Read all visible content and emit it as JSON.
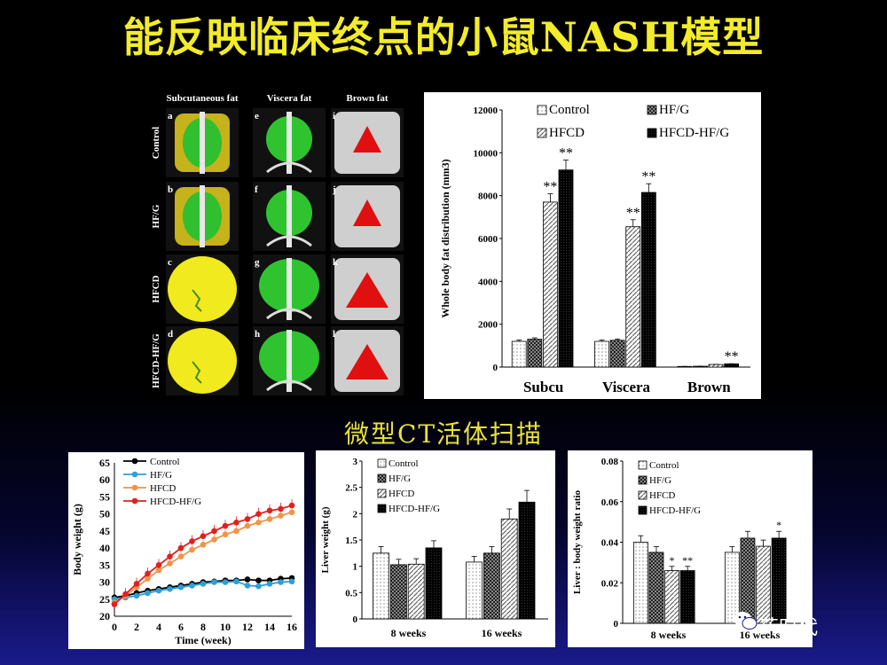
{
  "title": "能反映临床终点的小鼠NASH模型",
  "subtitle": "微型CT活体扫描",
  "watermark": "药时代",
  "ct_panel": {
    "columns": [
      "Subcutaneous fat",
      "Viscera fat",
      "Brown fat"
    ],
    "rows": [
      "Control",
      "HF/G",
      "HFCD",
      "HFCD-HF/G"
    ],
    "letters": [
      "a",
      "e",
      "i",
      "b",
      "f",
      "j",
      "c",
      "g",
      "k",
      "d",
      "h",
      "l"
    ]
  },
  "chart_data": [
    {
      "type": "bar",
      "ylabel": "Whole body fat distribution (mm3)",
      "categories": [
        "Subcu",
        "Viscera",
        "Brown"
      ],
      "ylim": [
        0,
        12000
      ],
      "yticks": [
        "0",
        "2000",
        "4000",
        "6000",
        "8000",
        "10000",
        "12000"
      ],
      "legend_position": "top",
      "series": [
        {
          "name": "Control",
          "values": [
            1200,
            1200,
            30
          ],
          "annotations": [
            "",
            "",
            ""
          ]
        },
        {
          "name": "HF/G",
          "values": [
            1300,
            1250,
            40
          ],
          "annotations": [
            "",
            "",
            ""
          ]
        },
        {
          "name": "HFCD",
          "values": [
            7700,
            6550,
            120
          ],
          "annotations": [
            "**",
            "**",
            ""
          ]
        },
        {
          "name": "HFCD-HF/G",
          "values": [
            9200,
            8150,
            150
          ],
          "annotations": [
            "**",
            "**",
            "**"
          ]
        }
      ]
    },
    {
      "type": "line",
      "xlabel": "Time (week)",
      "ylabel": "Body weight (g)",
      "ylim": [
        20,
        65
      ],
      "xlim": [
        0,
        16
      ],
      "yticks": [
        "20",
        "25",
        "30",
        "35",
        "40",
        "45",
        "50",
        "55",
        "60",
        "65"
      ],
      "xticks": [
        "0",
        "2",
        "4",
        "6",
        "8",
        "10",
        "12",
        "14",
        "16"
      ],
      "x": [
        0,
        1,
        2,
        3,
        4,
        5,
        6,
        7,
        8,
        9,
        10,
        11,
        12,
        13,
        14,
        15,
        16
      ],
      "series": [
        {
          "name": "Control",
          "color": "#000000",
          "values": [
            25.5,
            26,
            26.8,
            27.5,
            28,
            28.5,
            29,
            29.5,
            30,
            30.2,
            30.5,
            30.5,
            30.8,
            30.5,
            30.5,
            31,
            31.2
          ]
        },
        {
          "name": "HF/G",
          "color": "#2e9fd6",
          "values": [
            25,
            25.5,
            26,
            26.8,
            27.5,
            28,
            28.5,
            29,
            29.5,
            30,
            30,
            30.2,
            29,
            28.8,
            29.5,
            30,
            30.2
          ]
        },
        {
          "name": "HFCD",
          "color": "#f0944a",
          "values": [
            24,
            26,
            28.5,
            31,
            33.5,
            35.5,
            37.5,
            39.5,
            41,
            42.5,
            44,
            45,
            46.5,
            47.5,
            48.5,
            49.5,
            50.5
          ]
        },
        {
          "name": "HFCD-HF/G",
          "color": "#e02020",
          "values": [
            23.5,
            26.5,
            29.5,
            32.5,
            35,
            37.5,
            40,
            42,
            43.5,
            45,
            46.5,
            47.5,
            48.5,
            50,
            51,
            51.5,
            52.5
          ]
        }
      ]
    },
    {
      "type": "bar",
      "ylabel": "Liver weight (g)",
      "categories": [
        "8 weeks",
        "16 weeks"
      ],
      "ylim": [
        0,
        3
      ],
      "yticks": [
        "0",
        "0.5",
        "1",
        "1.5",
        "2",
        "2.5",
        "3"
      ],
      "series": [
        {
          "name": "Control",
          "values": [
            1.25,
            1.08
          ]
        },
        {
          "name": "HF/G",
          "values": [
            1.03,
            1.25
          ]
        },
        {
          "name": "HFCD",
          "values": [
            1.04,
            1.9
          ]
        },
        {
          "name": "HFCD-HF/G",
          "values": [
            1.35,
            2.22
          ]
        }
      ]
    },
    {
      "type": "bar",
      "ylabel": "Liver : body weight ratio",
      "categories": [
        "8 weeks",
        "16 weeks"
      ],
      "ylim": [
        0,
        0.08
      ],
      "yticks": [
        "0",
        "0.02",
        "0.04",
        "0.06",
        "0.08"
      ],
      "series": [
        {
          "name": "Control",
          "values": [
            0.04,
            0.035
          ],
          "annotations": [
            "",
            ""
          ]
        },
        {
          "name": "HF/G",
          "values": [
            0.035,
            0.042
          ],
          "annotations": [
            "",
            ""
          ]
        },
        {
          "name": "HFCD",
          "values": [
            0.026,
            0.038
          ],
          "annotations": [
            "*",
            ""
          ]
        },
        {
          "name": "HFCD-HF/G",
          "values": [
            0.026,
            0.042
          ],
          "annotations": [
            "**",
            "*"
          ]
        }
      ]
    }
  ]
}
